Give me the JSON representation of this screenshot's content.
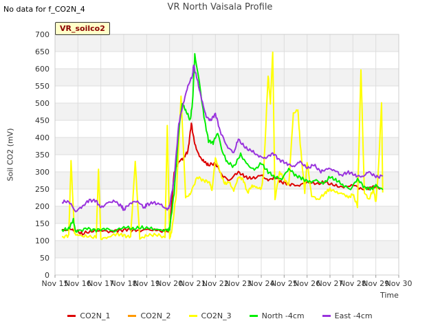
{
  "page": {
    "no_data_text": "No data for f_CO2N_4",
    "title": "VR North Vaisala Profile",
    "badge": "VR_soilco2"
  },
  "chart_data": {
    "type": "line",
    "title": "VR North Vaisala Profile",
    "xlabel": "Time",
    "ylabel": "Soil CO2 (mV)",
    "xlim": [
      15,
      30
    ],
    "ylim": [
      0,
      700
    ],
    "x_tick_labels": [
      "Nov 15",
      "Nov 16",
      "Nov 17",
      "Nov 18",
      "Nov 19",
      "Nov 20",
      "Nov 21",
      "Nov 22",
      "Nov 23",
      "Nov 24",
      "Nov 25",
      "Nov 26",
      "Nov 27",
      "Nov 28",
      "Nov 29",
      "Nov 30"
    ],
    "x_tick_values": [
      15,
      16,
      17,
      18,
      19,
      20,
      21,
      22,
      23,
      24,
      25,
      26,
      27,
      28,
      29,
      30
    ],
    "y_tick_values": [
      0,
      50,
      100,
      150,
      200,
      250,
      300,
      350,
      400,
      450,
      500,
      550,
      600,
      650,
      700
    ],
    "y_tick_labels": [
      "0",
      "50",
      "100",
      "150",
      "200",
      "250",
      "300",
      "350",
      "400",
      "450",
      "500",
      "550",
      "600",
      "650",
      "700"
    ],
    "grid": true,
    "legend_position": "bottom",
    "series": [
      {
        "name": "CO2N_1",
        "color": "#dd0000",
        "x": [
          15.3,
          15.7,
          15.9,
          16.2,
          16.6,
          17.0,
          17.4,
          17.8,
          18.2,
          18.6,
          19.0,
          19.4,
          19.8,
          20.0,
          20.2,
          20.4,
          20.6,
          20.8,
          20.95,
          21.1,
          21.3,
          21.5,
          21.7,
          22.0,
          22.3,
          22.6,
          23.0,
          23.3,
          23.6,
          24.0,
          24.3,
          24.6,
          24.9,
          25.2,
          25.6,
          26.0,
          26.4,
          26.8,
          27.2,
          27.6,
          28.0,
          28.4,
          28.8,
          29.0,
          29.2
        ],
        "y": [
          130,
          132,
          130,
          120,
          128,
          130,
          126,
          130,
          132,
          128,
          132,
          130,
          127,
          130,
          300,
          330,
          340,
          360,
          440,
          380,
          345,
          330,
          320,
          325,
          290,
          275,
          300,
          285,
          280,
          290,
          275,
          285,
          270,
          265,
          260,
          270,
          265,
          270,
          260,
          255,
          262,
          250,
          255,
          258,
          250
        ]
      },
      {
        "name": "CO2N_2",
        "color": "#ff9900",
        "x": [],
        "y": []
      },
      {
        "name": "CO2N_3",
        "color": "#ffff00",
        "x": [
          15.3,
          15.6,
          15.7,
          15.85,
          16.0,
          16.4,
          16.8,
          16.9,
          17.0,
          17.3,
          17.7,
          18.0,
          18.3,
          18.5,
          18.7,
          19.0,
          19.4,
          19.8,
          19.9,
          20.0,
          20.1,
          20.3,
          20.5,
          20.7,
          20.9,
          21.2,
          21.5,
          21.75,
          21.85,
          22.0,
          22.2,
          22.4,
          22.6,
          22.8,
          23.0,
          23.2,
          23.4,
          23.6,
          23.8,
          24.0,
          24.1,
          24.3,
          24.4,
          24.5,
          24.6,
          24.8,
          25.0,
          25.2,
          25.4,
          25.6,
          25.7,
          25.9,
          26.0,
          26.2,
          26.5,
          26.8,
          27.0,
          27.3,
          27.6,
          27.8,
          28.0,
          28.2,
          28.35,
          28.5,
          28.7,
          28.9,
          29.0,
          29.1,
          29.25,
          29.3
        ],
        "y": [
          110,
          115,
          330,
          120,
          115,
          112,
          110,
          310,
          105,
          110,
          120,
          115,
          110,
          330,
          105,
          115,
          118,
          110,
          435,
          105,
          130,
          240,
          520,
          225,
          235,
          285,
          275,
          270,
          245,
          340,
          300,
          265,
          270,
          245,
          285,
          280,
          240,
          260,
          255,
          250,
          290,
          580,
          500,
          650,
          220,
          300,
          280,
          260,
          470,
          480,
          380,
          240,
          330,
          230,
          220,
          240,
          250,
          240,
          235,
          225,
          235,
          200,
          600,
          240,
          220,
          250,
          210,
          290,
          500,
          240
        ]
      },
      {
        "name": "North -4cm",
        "color": "#00ee00",
        "x": [
          15.3,
          15.6,
          15.8,
          15.9,
          16.0,
          16.4,
          16.8,
          17.2,
          17.6,
          18.0,
          18.4,
          18.8,
          19.2,
          19.6,
          19.9,
          20.0,
          20.2,
          20.4,
          20.55,
          20.7,
          20.9,
          21.0,
          21.1,
          21.3,
          21.5,
          21.7,
          21.9,
          22.1,
          22.3,
          22.5,
          22.8,
          23.1,
          23.4,
          23.7,
          24.0,
          24.3,
          24.6,
          24.9,
          25.2,
          25.5,
          25.8,
          26.1,
          26.4,
          26.7,
          27.0,
          27.3,
          27.6,
          27.9,
          28.2,
          28.5,
          28.8,
          29.0,
          29.3
        ],
        "y": [
          130,
          135,
          160,
          125,
          128,
          135,
          130,
          135,
          128,
          140,
          135,
          138,
          135,
          130,
          130,
          135,
          240,
          420,
          500,
          480,
          450,
          500,
          640,
          560,
          460,
          390,
          385,
          415,
          360,
          330,
          315,
          350,
          320,
          305,
          325,
          300,
          285,
          280,
          310,
          290,
          280,
          270,
          275,
          265,
          285,
          275,
          260,
          250,
          280,
          255,
          250,
          260,
          248
        ]
      },
      {
        "name": "East -4cm",
        "color": "#9933dd",
        "x": [
          15.3,
          15.6,
          15.9,
          16.2,
          16.5,
          16.8,
          17.0,
          17.3,
          17.6,
          17.9,
          18.0,
          18.3,
          18.6,
          18.9,
          19.0,
          19.3,
          19.6,
          19.9,
          20.0,
          20.2,
          20.4,
          20.6,
          20.8,
          21.0,
          21.05,
          21.2,
          21.4,
          21.6,
          21.8,
          22.0,
          22.2,
          22.5,
          22.8,
          23.0,
          23.3,
          23.6,
          23.9,
          24.2,
          24.5,
          24.8,
          25.1,
          25.4,
          25.7,
          26.0,
          26.3,
          26.6,
          26.9,
          27.2,
          27.5,
          27.8,
          28.1,
          28.4,
          28.7,
          29.0,
          29.3
        ],
        "y": [
          212,
          215,
          185,
          200,
          218,
          215,
          195,
          210,
          215,
          200,
          190,
          210,
          215,
          195,
          205,
          210,
          205,
          190,
          200,
          280,
          440,
          500,
          550,
          580,
          610,
          570,
          510,
          460,
          450,
          470,
          420,
          375,
          355,
          395,
          370,
          360,
          345,
          340,
          355,
          335,
          325,
          315,
          330,
          310,
          320,
          300,
          310,
          305,
          290,
          300,
          290,
          285,
          300,
          285,
          288
        ]
      }
    ]
  }
}
